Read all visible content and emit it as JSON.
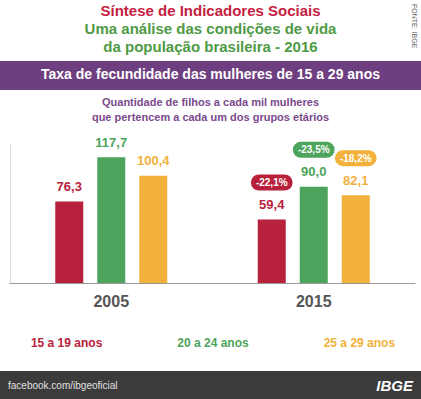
{
  "header": {
    "title": "Síntese de Indicadores Sociais",
    "subtitle": [
      "Uma análise das condições de vida",
      "da população brasileira - 2016"
    ]
  },
  "source": "FONTE: IBGE",
  "chart_data": {
    "type": "bar",
    "title": "Taxa de fecundidade das mulheres de 15 a 29 anos",
    "subtitle": [
      "Quantidade de filhos a cada mil mulheres",
      "que pertencem a cada um dos grupos etários"
    ],
    "categories": [
      "2005",
      "2015"
    ],
    "series": [
      {
        "name": "15 a 19 anos",
        "color": "#b8213b",
        "values": [
          76.3,
          59.4
        ],
        "value_labels": [
          "76,3",
          "59,4"
        ],
        "change_labels": [
          null,
          "-22,1%"
        ]
      },
      {
        "name": "20 a 24 anos",
        "color": "#4da45c",
        "values": [
          117.7,
          90.0
        ],
        "value_labels": [
          "117,7",
          "90,0"
        ],
        "change_labels": [
          null,
          "-23,5%"
        ]
      },
      {
        "name": "25 a 29 anos",
        "color": "#f1b13b",
        "values": [
          100.4,
          82.1
        ],
        "value_labels": [
          "100,4",
          "82,1"
        ],
        "change_labels": [
          null,
          "-18,2%"
        ]
      }
    ],
    "ylim": [
      0,
      130
    ],
    "data_labels": true,
    "tick_labels": "x",
    "grid": false,
    "legend": "bottom"
  },
  "footer": {
    "link": "facebook.com/ibgeoficial",
    "brand": "IBGE"
  }
}
